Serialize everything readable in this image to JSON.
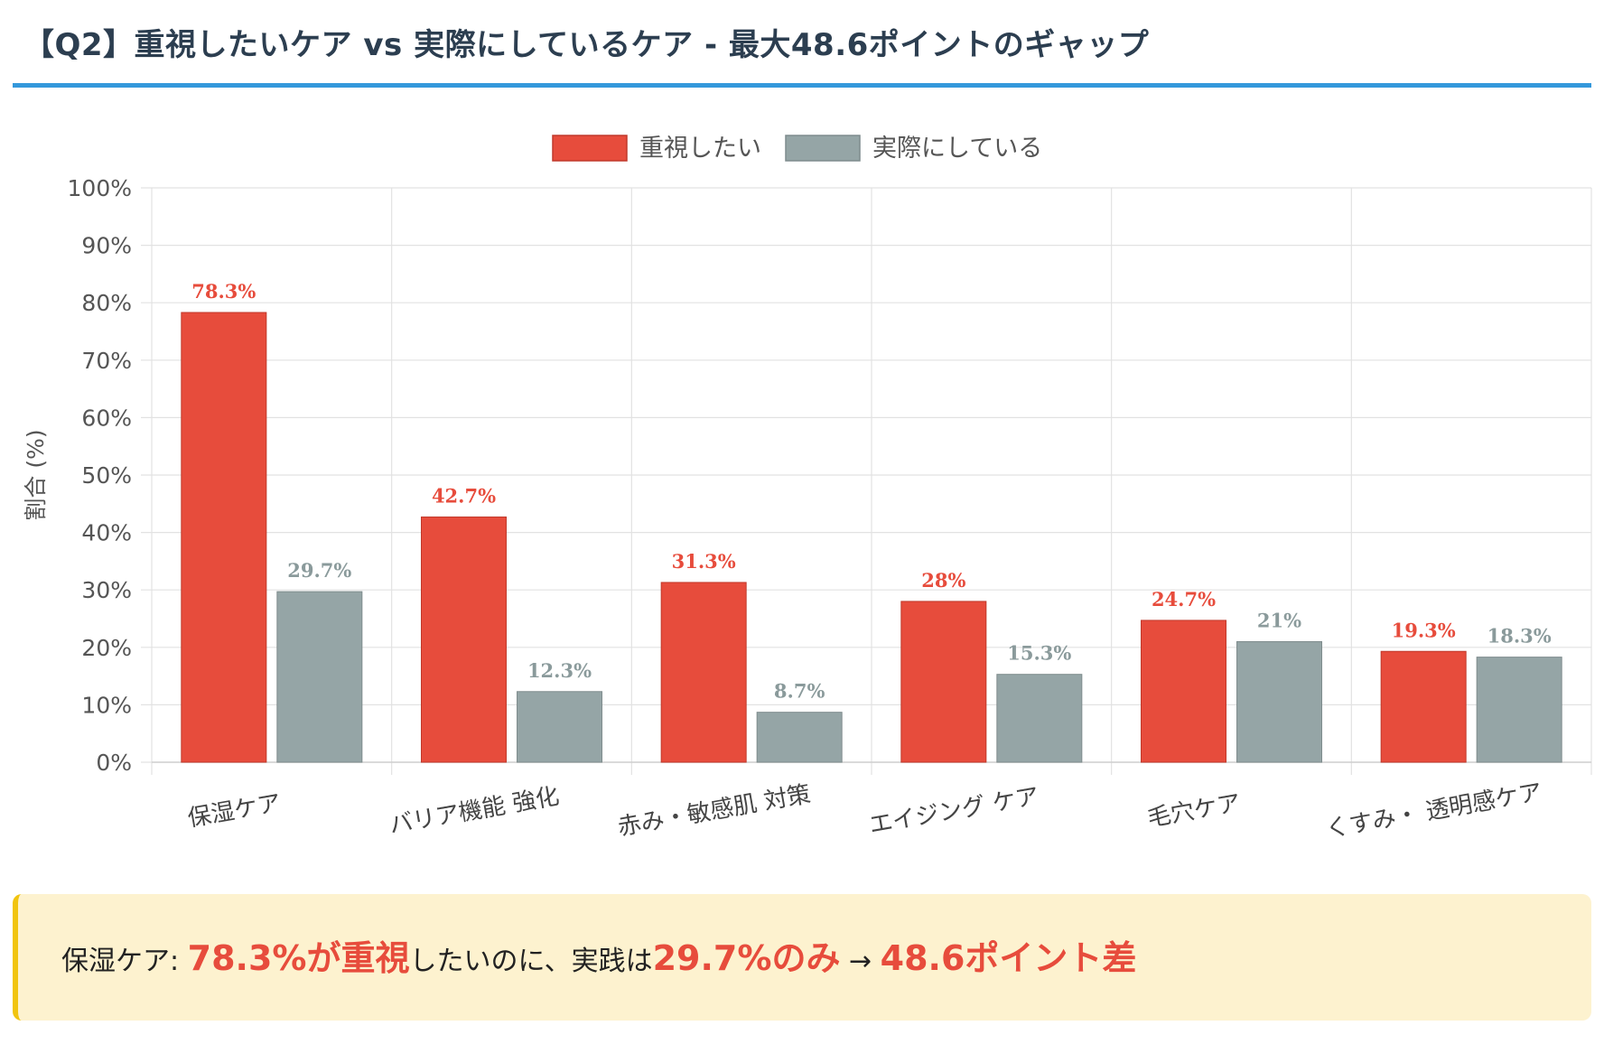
{
  "header": {
    "title": "【Q2】重視したいケア vs 実際にしているケア - 最大48.6ポイントのギャップ"
  },
  "colors": {
    "accent": "#3498db",
    "series_want": "#e74c3c",
    "series_actual": "#95a5a6",
    "callout_bg": "#fdf2cf",
    "callout_border": "#f1c40f"
  },
  "chart_data": {
    "type": "bar",
    "title": "",
    "xlabel": "",
    "ylabel": "割合 (%)",
    "ylim": [
      0,
      100
    ],
    "yticks": [
      "0%",
      "10%",
      "20%",
      "30%",
      "40%",
      "50%",
      "60%",
      "70%",
      "80%",
      "90%",
      "100%"
    ],
    "legend_position": "top",
    "categories": [
      "保湿ケア",
      "バリア機能 強化",
      "赤み・敏感肌 対策",
      "エイジング ケア",
      "毛穴ケア",
      "くすみ・ 透明感ケア"
    ],
    "series": [
      {
        "name": "重視したい",
        "values": [
          78.3,
          42.7,
          31.3,
          28,
          24.7,
          19.3
        ],
        "labels": [
          "78.3%",
          "42.7%",
          "31.3%",
          "28%",
          "24.7%",
          "19.3%"
        ]
      },
      {
        "name": "実際にしている",
        "values": [
          29.7,
          12.3,
          8.7,
          15.3,
          21,
          18.3
        ],
        "labels": [
          "29.7%",
          "12.3%",
          "8.7%",
          "15.3%",
          "21%",
          "18.3%"
        ]
      }
    ]
  },
  "callout": {
    "prefix": "保湿ケア: ",
    "highlight1": "78.3%が重視",
    "middle": "したいのに、実践は",
    "highlight2": "29.7%のみ",
    "arrow": " → ",
    "highlight3": "48.6ポイント差"
  }
}
